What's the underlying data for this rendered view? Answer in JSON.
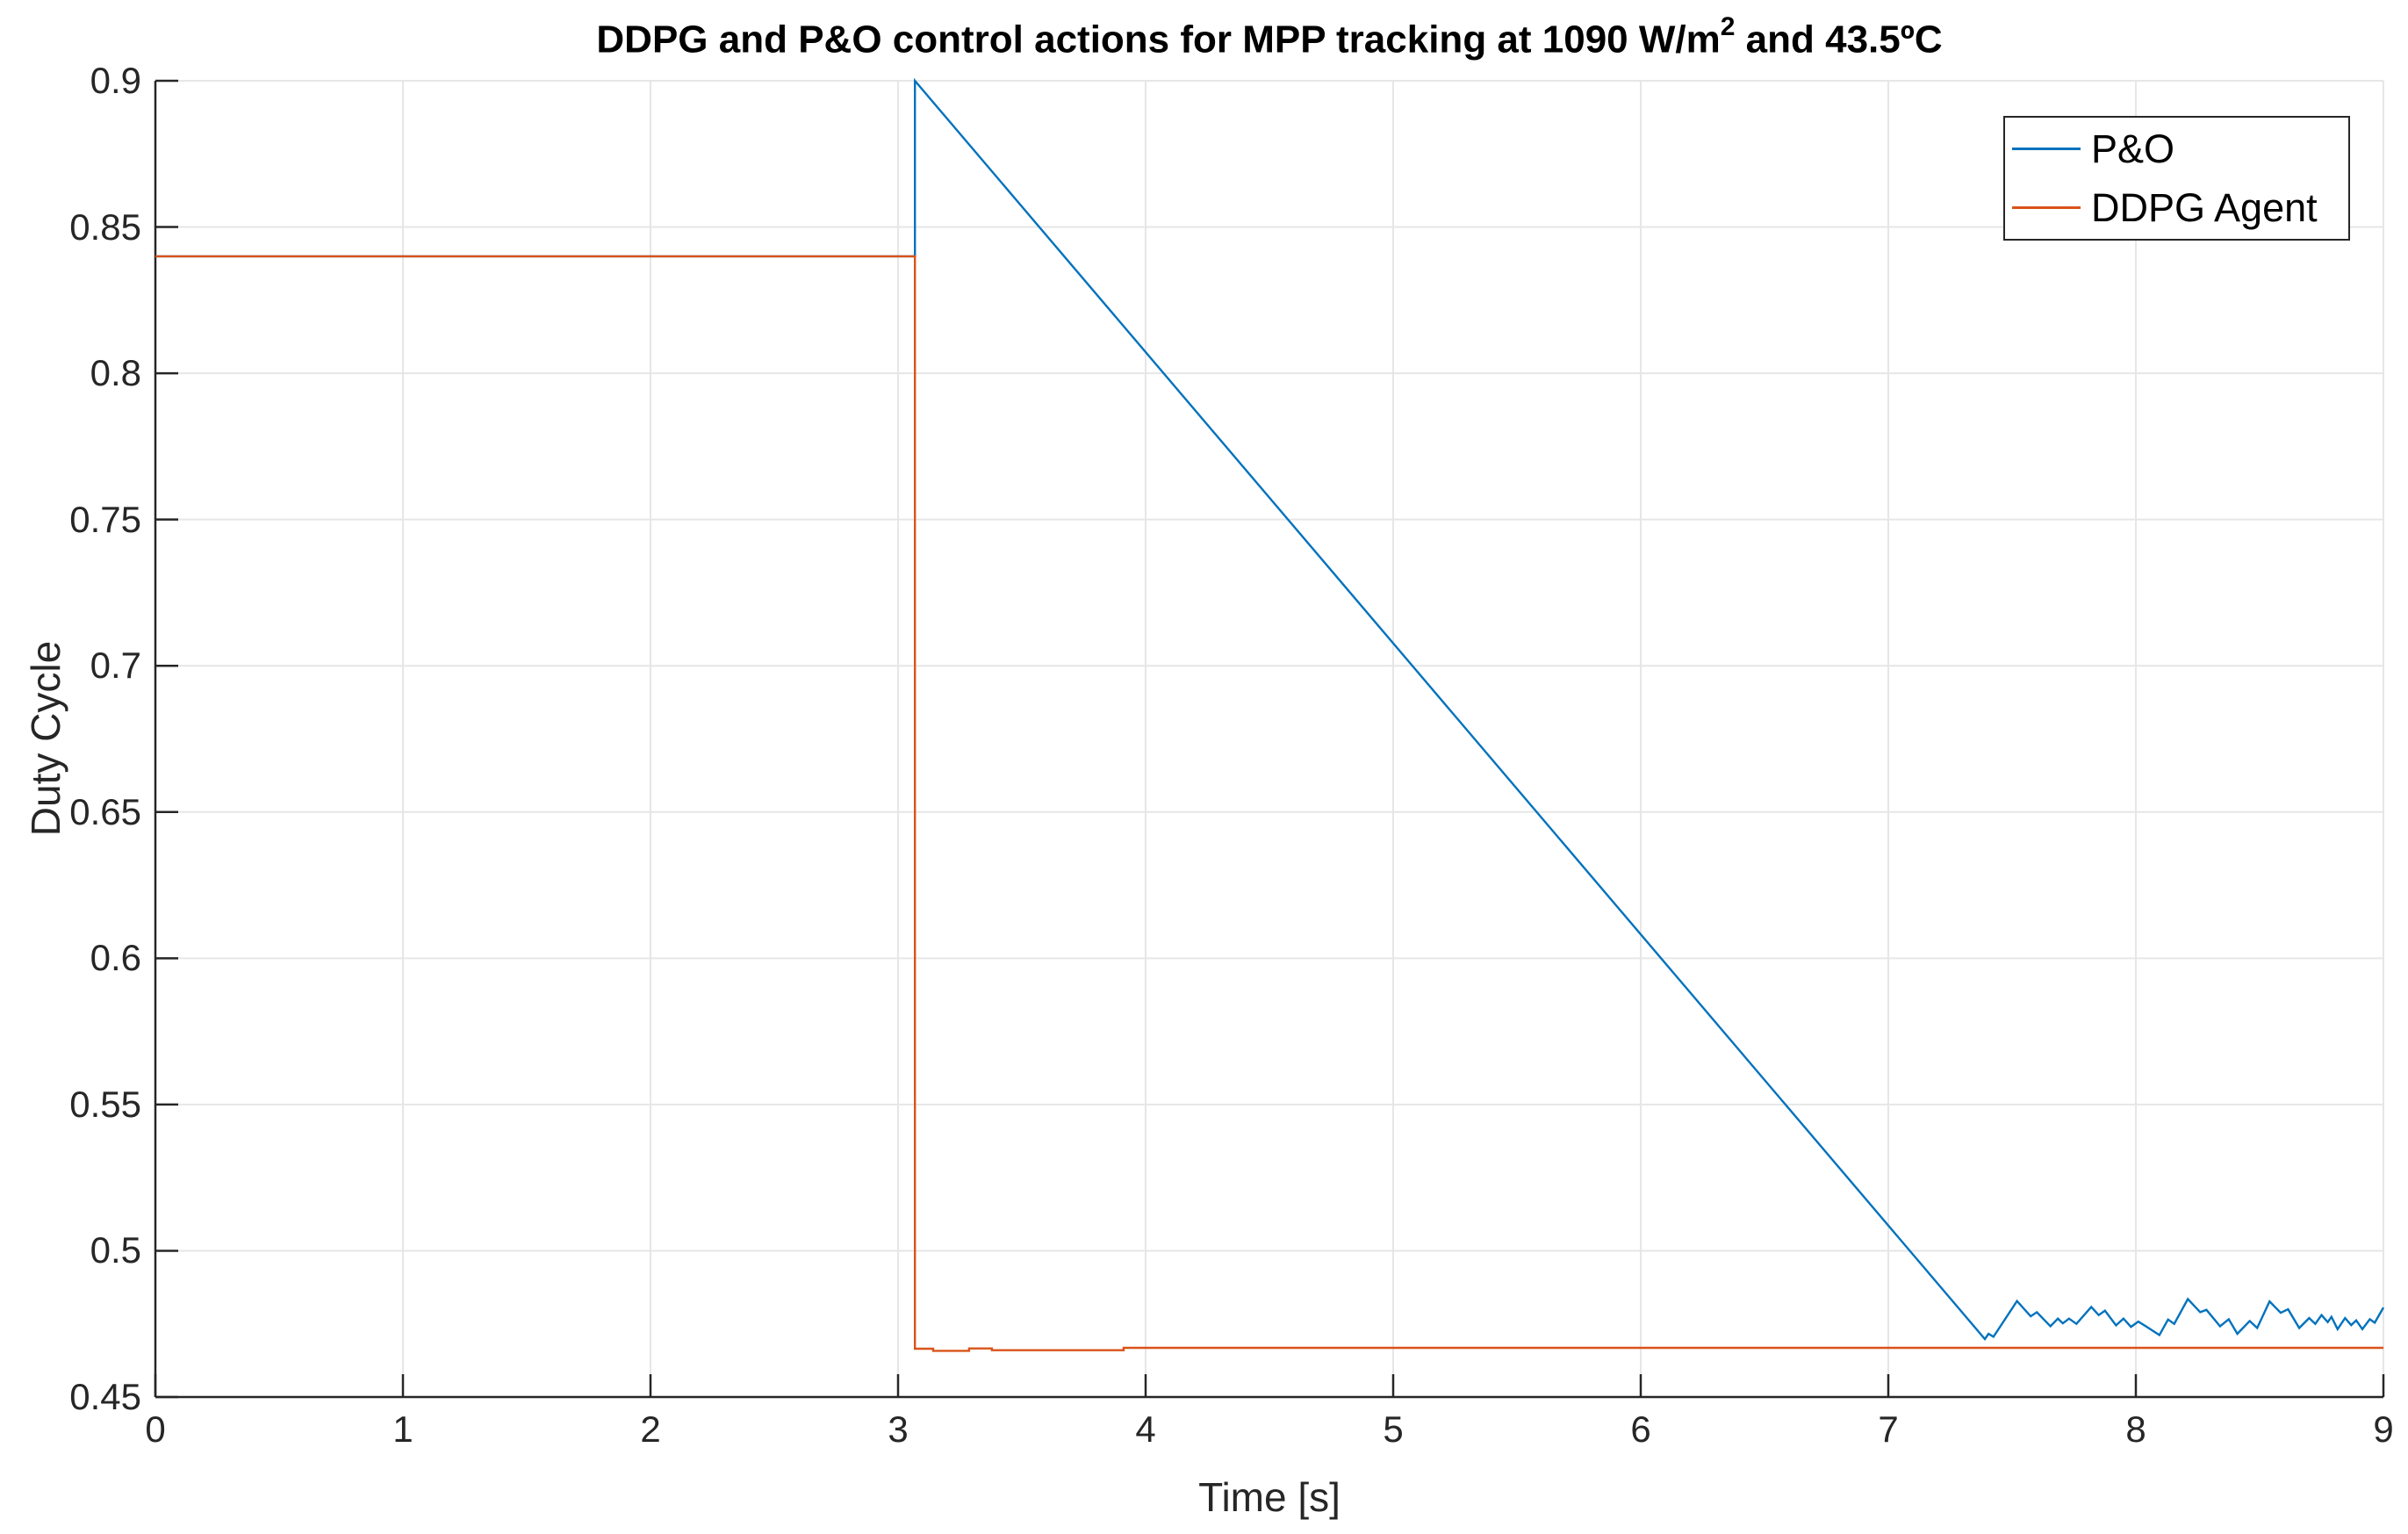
{
  "title": {
    "prefix": "DDPG and P&O control actions for MPP tracking at 1090 W/m",
    "superscript": "2",
    "suffix": " and 43.5ºC"
  },
  "chart_data": {
    "type": "line",
    "title": "DDPG and P&O control actions for MPP tracking at 1090 W/m² and 43.5ºC",
    "xlabel": "Time [s]",
    "ylabel": "Duty Cycle",
    "xlim": [
      0,
      9
    ],
    "ylim": [
      0.45,
      0.9
    ],
    "xticks": [
      0,
      1,
      2,
      3,
      4,
      5,
      6,
      7,
      8,
      9
    ],
    "xtick_labels": [
      "0",
      "1",
      "2",
      "3",
      "4",
      "5",
      "6",
      "7",
      "8",
      "9"
    ],
    "yticks": [
      0.45,
      0.5,
      0.55,
      0.6,
      0.65,
      0.7,
      0.75,
      0.8,
      0.85,
      0.9
    ],
    "ytick_labels": [
      "0.45",
      "0.5",
      "0.55",
      "0.6",
      "0.65",
      "0.7",
      "0.75",
      "0.8",
      "0.85",
      "0.9"
    ],
    "grid": true,
    "colors": {
      "grid": "#e6e6e6",
      "axis": "#262626",
      "blue": "#0072BD",
      "orange": "#D95319"
    },
    "legend": {
      "position": "northeast",
      "entries": [
        {
          "label": "P&O",
          "color": "#0072BD"
        },
        {
          "label": "DDPG Agent",
          "color": "#D95319"
        }
      ]
    },
    "series": [
      {
        "name": "P&O",
        "color": "#0072BD",
        "points": [
          [
            0,
            0.84
          ],
          [
            3.068,
            0.84
          ],
          [
            3.068,
            0.9
          ],
          [
            7.39,
            0.4698
          ],
          [
            7.405,
            0.4716
          ],
          [
            7.425,
            0.4706
          ],
          [
            7.52,
            0.4828
          ],
          [
            7.575,
            0.4776
          ],
          [
            7.6,
            0.479
          ],
          [
            7.655,
            0.4742
          ],
          [
            7.685,
            0.4768
          ],
          [
            7.705,
            0.4752
          ],
          [
            7.73,
            0.4768
          ],
          [
            7.76,
            0.475
          ],
          [
            7.82,
            0.4808
          ],
          [
            7.85,
            0.478
          ],
          [
            7.875,
            0.4795
          ],
          [
            7.92,
            0.4745
          ],
          [
            7.95,
            0.4768
          ],
          [
            7.98,
            0.474
          ],
          [
            8.01,
            0.4758
          ],
          [
            8.04,
            0.4742
          ],
          [
            8.095,
            0.4712
          ],
          [
            8.13,
            0.4765
          ],
          [
            8.155,
            0.475
          ],
          [
            8.21,
            0.4835
          ],
          [
            8.26,
            0.479
          ],
          [
            8.285,
            0.4798
          ],
          [
            8.34,
            0.4742
          ],
          [
            8.375,
            0.4766
          ],
          [
            8.41,
            0.4716
          ],
          [
            8.46,
            0.476
          ],
          [
            8.49,
            0.4736
          ],
          [
            8.54,
            0.4827
          ],
          [
            8.585,
            0.4788
          ],
          [
            8.615,
            0.48
          ],
          [
            8.66,
            0.4736
          ],
          [
            8.7,
            0.477
          ],
          [
            8.725,
            0.475
          ],
          [
            8.75,
            0.478
          ],
          [
            8.775,
            0.4756
          ],
          [
            8.79,
            0.4774
          ],
          [
            8.815,
            0.4732
          ],
          [
            8.845,
            0.477
          ],
          [
            8.87,
            0.4746
          ],
          [
            8.89,
            0.4762
          ],
          [
            8.915,
            0.4732
          ],
          [
            8.945,
            0.4766
          ],
          [
            8.965,
            0.4754
          ],
          [
            9.0,
            0.4806
          ]
        ]
      },
      {
        "name": "DDPG Agent",
        "color": "#D95319",
        "points": [
          [
            0,
            0.84
          ],
          [
            3.068,
            0.84
          ],
          [
            3.068,
            0.4665
          ],
          [
            3.142,
            0.4665
          ],
          [
            3.142,
            0.4658
          ],
          [
            3.287,
            0.4658
          ],
          [
            3.287,
            0.4666
          ],
          [
            3.379,
            0.4666
          ],
          [
            3.379,
            0.466
          ],
          [
            3.911,
            0.466
          ],
          [
            3.911,
            0.4668
          ],
          [
            9.0,
            0.4668
          ]
        ]
      }
    ]
  }
}
